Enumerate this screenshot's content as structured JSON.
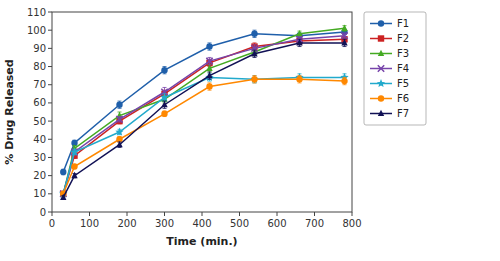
{
  "chart_data": {
    "type": "line",
    "xlabel": "Time (min.)",
    "ylabel": "% Drug Released",
    "x": [
      30,
      60,
      180,
      300,
      420,
      540,
      660,
      780
    ],
    "series": [
      {
        "name": "F1",
        "color": "#1f5faa",
        "marker": "circle",
        "values": [
          22,
          38,
          59,
          78,
          91,
          98,
          97,
          99
        ],
        "errors": [
          1.5,
          1.5,
          2.0,
          2.0,
          2.0,
          2.0,
          1.5,
          1.5
        ]
      },
      {
        "name": "F2",
        "color": "#cc2222",
        "marker": "square",
        "values": [
          10,
          31,
          50,
          65,
          82,
          91,
          94,
          95
        ],
        "errors": [
          1.0,
          1.5,
          1.5,
          2.0,
          2.0,
          2.0,
          1.5,
          1.5
        ]
      },
      {
        "name": "F3",
        "color": "#44aa22",
        "marker": "triangle",
        "values": [
          10,
          35,
          53,
          62,
          79,
          88,
          98,
          101
        ],
        "errors": [
          1.0,
          1.5,
          2.0,
          2.0,
          2.0,
          2.0,
          1.5,
          1.5
        ]
      },
      {
        "name": "F4",
        "color": "#7744aa",
        "marker": "x",
        "values": [
          10,
          33,
          51,
          66,
          83,
          90,
          95,
          97
        ],
        "errors": [
          1.0,
          1.5,
          1.5,
          2.5,
          2.0,
          2.0,
          1.5,
          1.5
        ]
      },
      {
        "name": "F5",
        "color": "#22aacc",
        "marker": "star",
        "values": [
          10,
          33,
          44,
          63,
          74,
          73,
          74,
          74
        ],
        "errors": [
          1.0,
          1.5,
          1.5,
          2.0,
          2.0,
          2.0,
          2.0,
          2.0
        ]
      },
      {
        "name": "F6",
        "color": "#ff8800",
        "marker": "circle",
        "values": [
          10,
          25,
          40,
          54,
          69,
          73,
          73,
          72
        ],
        "errors": [
          1.0,
          1.2,
          1.5,
          1.5,
          2.0,
          2.0,
          2.0,
          2.0
        ]
      },
      {
        "name": "F7",
        "color": "#111155",
        "marker": "triangle",
        "values": [
          8,
          20,
          37,
          59,
          75,
          87,
          93,
          93
        ],
        "errors": [
          1.0,
          1.2,
          1.5,
          2.0,
          2.0,
          2.0,
          2.0,
          2.0
        ]
      }
    ],
    "xlim": [
      0,
      800
    ],
    "ylim": [
      0,
      110
    ],
    "xticks": [
      0,
      100,
      200,
      300,
      400,
      500,
      600,
      700,
      800
    ],
    "yticks": [
      0,
      10,
      20,
      30,
      40,
      50,
      60,
      70,
      80,
      90,
      100,
      110
    ],
    "grid": false,
    "legend": "right"
  }
}
